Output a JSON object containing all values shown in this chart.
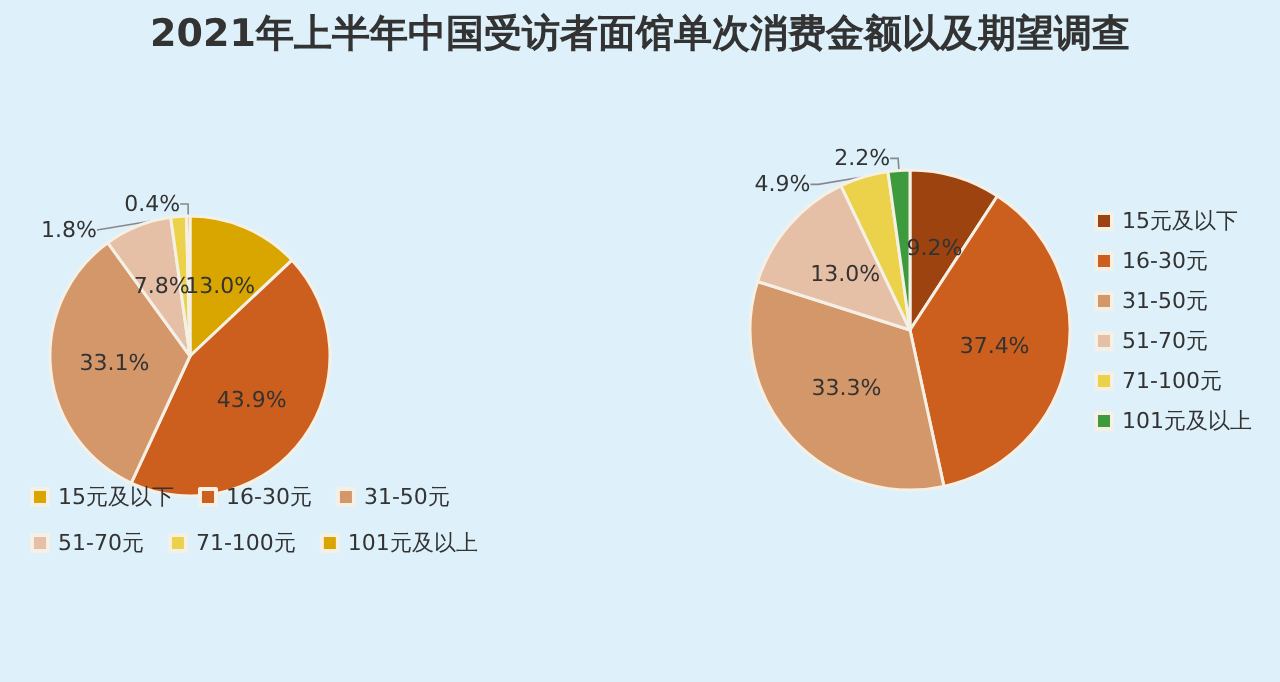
{
  "chart_data": [
    {
      "type": "pie",
      "title": "2021年上半年中国受访者面馆单次消费金额以及期望调查",
      "categories": [
        "15元及以下",
        "16-30元",
        "31-50元",
        "51-70元",
        "71-100元",
        "101元及以上"
      ],
      "values": [
        13.0,
        43.9,
        33.1,
        7.8,
        1.8,
        0.4
      ],
      "colors": [
        "#d9a600",
        "#cc5e1e",
        "#d4976a",
        "#e6c0a6",
        "#ecd24a",
        "#d9a600"
      ],
      "value_labels": [
        "13.0%",
        "43.9%",
        "33.1%",
        "7.8%",
        "1.8%",
        "0.4%"
      ],
      "legend": "bottom"
    },
    {
      "type": "pie",
      "categories": [
        "15元及以下",
        "16-30元",
        "31-50元",
        "51-70元",
        "71-100元",
        "101元及以上"
      ],
      "values": [
        9.2,
        37.4,
        33.3,
        13.0,
        4.9,
        2.2
      ],
      "colors": [
        "#9c430f",
        "#cc5e1e",
        "#d4976a",
        "#e6c0a6",
        "#ecd24a",
        "#3d9a3d"
      ],
      "value_labels": [
        "9.2%",
        "37.4%",
        "33.3%",
        "13.0%",
        "4.9%",
        "2.2%"
      ],
      "legend": "right"
    }
  ]
}
